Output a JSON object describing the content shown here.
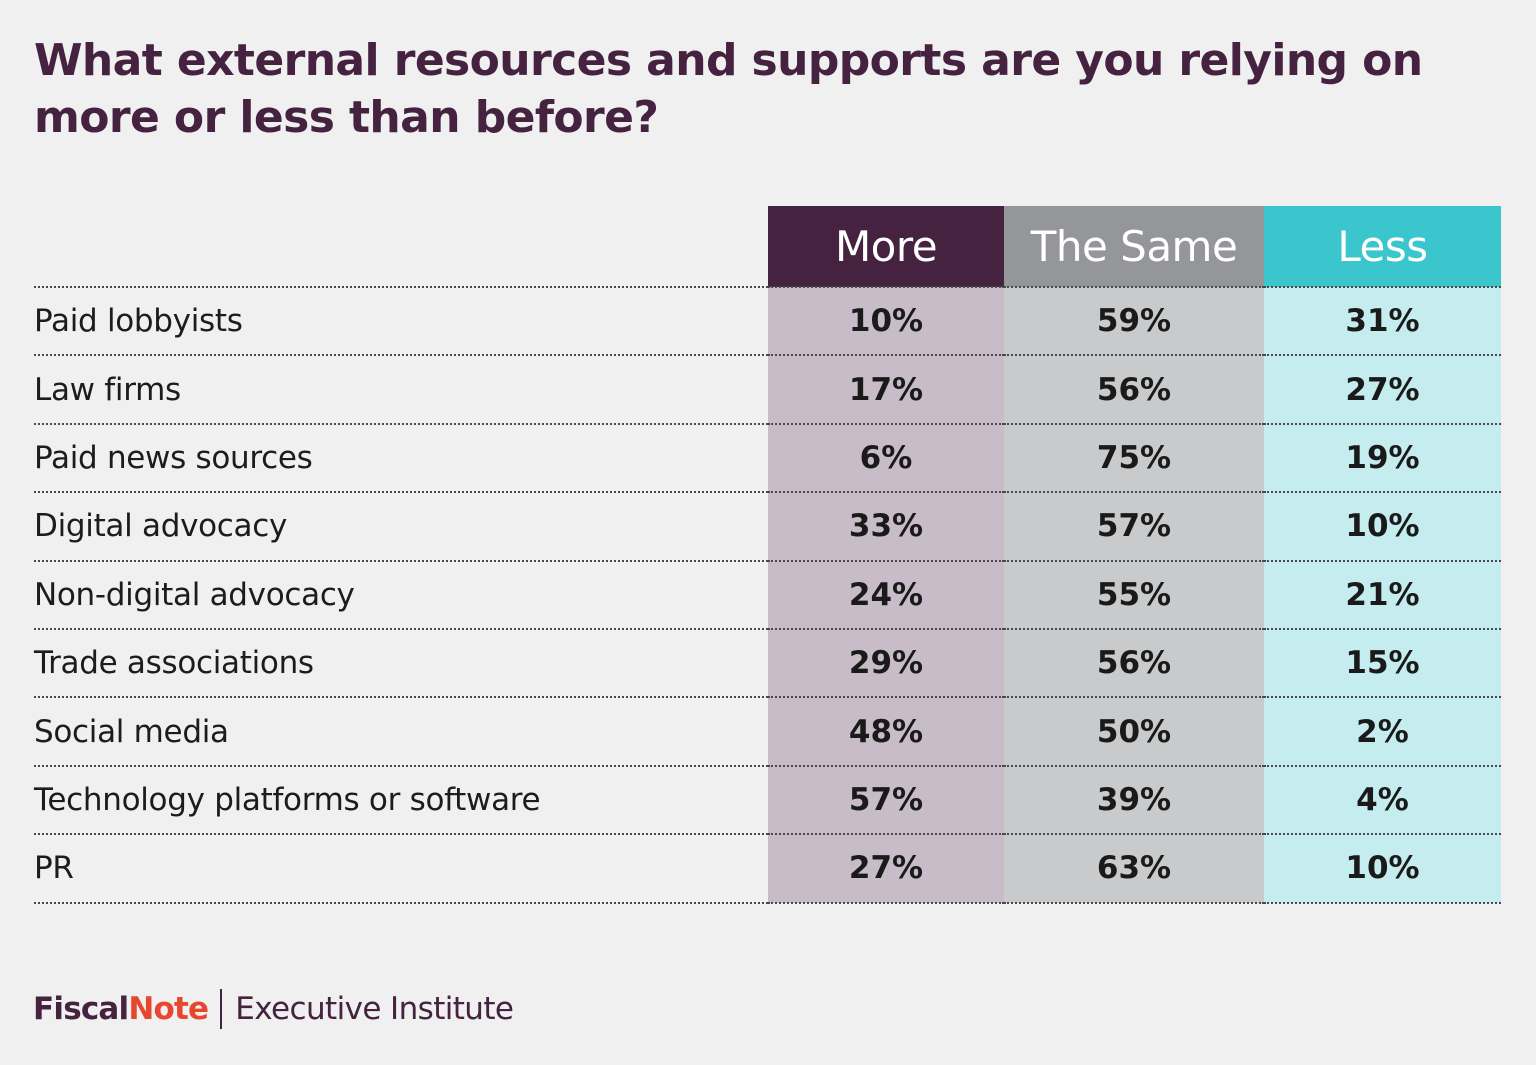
{
  "title": "What external resources and supports are you relying on more or less than before?",
  "colors": {
    "more": "#45223f",
    "same": "#95969a",
    "less": "#3bc5cc",
    "more_tint": "#c8bcc8",
    "same_tint": "#c9cacb",
    "less_tint": "#c5ecee",
    "brand_orange": "#e8472f"
  },
  "chart_data": {
    "type": "table",
    "columns": [
      "More",
      "The Same",
      "Less"
    ],
    "rows": [
      {
        "label": "Paid lobbyists",
        "values": [
          "10%",
          "59%",
          "31%"
        ]
      },
      {
        "label": "Law firms",
        "values": [
          "17%",
          "56%",
          "27%"
        ]
      },
      {
        "label": "Paid news sources",
        "values": [
          "6%",
          "75%",
          "19%"
        ]
      },
      {
        "label": "Digital advocacy",
        "values": [
          "33%",
          "57%",
          "10%"
        ]
      },
      {
        "label": "Non-digital advocacy",
        "values": [
          "24%",
          "55%",
          "21%"
        ]
      },
      {
        "label": "Trade associations",
        "values": [
          "29%",
          "56%",
          "15%"
        ]
      },
      {
        "label": "Social media",
        "values": [
          "48%",
          "50%",
          "2%"
        ]
      },
      {
        "label": "Technology platforms or software",
        "values": [
          "57%",
          "39%",
          "4%"
        ]
      },
      {
        "label": "PR",
        "values": [
          "27%",
          "63%",
          "10%"
        ]
      }
    ]
  },
  "footer": {
    "logo_part1": "Fiscal",
    "logo_part2": "Note",
    "institute": "Executive Institute"
  }
}
